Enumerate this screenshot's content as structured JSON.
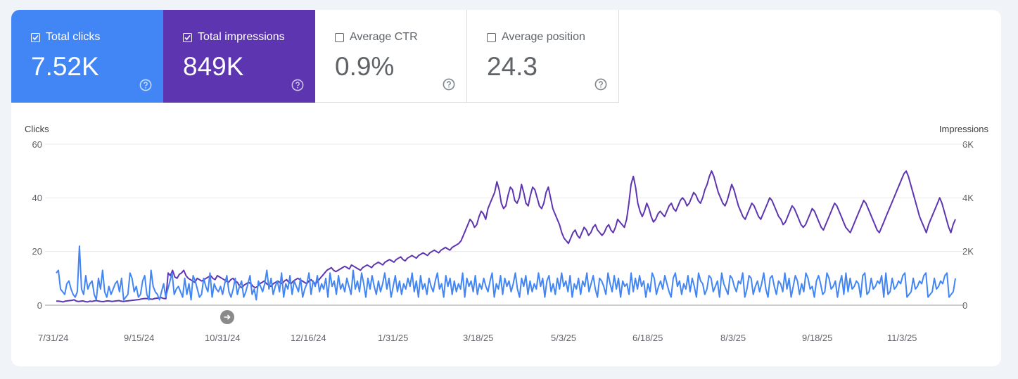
{
  "cards": [
    {
      "label": "Total clicks",
      "value": "7.52K",
      "checked": true,
      "color": "#4285f4"
    },
    {
      "label": "Total impressions",
      "value": "849K",
      "checked": true,
      "color": "#5e35b1"
    },
    {
      "label": "Average CTR",
      "value": "0.9%",
      "checked": false
    },
    {
      "label": "Average position",
      "value": "24.3",
      "checked": false
    }
  ],
  "icons": {
    "checkbox": "checkbox-icon",
    "help": "help-circle-icon",
    "navigate": "arrow-right-icon"
  },
  "chart_data": {
    "type": "line",
    "y_left_label": "Clicks",
    "y_right_label": "Impressions",
    "y_left_ticks": [
      "60",
      "40",
      "20",
      "0"
    ],
    "y_right_ticks": [
      "6K",
      "4K",
      "2K",
      "0"
    ],
    "ylim_left": [
      0,
      60
    ],
    "ylim_right": [
      0,
      6000
    ],
    "x_tick_labels": [
      "7/31/24",
      "9/15/24",
      "10/31/24",
      "12/16/24",
      "1/31/25",
      "3/18/25",
      "5/3/25",
      "6/18/25",
      "8/3/25",
      "9/18/25",
      "11/3/25"
    ],
    "grid": true,
    "series": [
      {
        "name": "Total clicks",
        "axis": "left",
        "color": "#4285f4",
        "values": [
          12,
          13,
          6,
          5,
          4,
          8,
          9,
          6,
          4,
          3,
          5,
          22,
          6,
          4,
          11,
          6,
          8,
          9,
          4,
          2,
          10,
          6,
          13,
          5,
          3,
          7,
          4,
          6,
          8,
          9,
          5,
          10,
          2,
          3,
          4,
          12,
          10,
          5,
          7,
          3,
          4,
          9,
          11,
          4,
          2,
          13,
          7,
          5,
          4,
          2,
          5,
          8,
          3,
          6,
          9,
          12,
          4,
          6,
          7,
          5,
          3,
          10,
          4,
          8,
          2,
          11,
          9,
          6,
          3,
          4,
          10,
          7,
          5,
          12,
          3,
          8,
          6,
          5,
          7,
          4,
          8,
          11,
          5,
          3,
          6,
          10,
          4,
          7,
          9,
          3,
          5,
          8,
          11,
          4,
          6,
          2,
          9,
          7,
          5,
          8,
          13,
          6,
          10,
          4,
          7,
          9,
          5,
          12,
          3,
          8,
          6,
          11,
          4,
          9,
          7,
          5,
          10,
          3,
          6,
          8,
          12,
          4,
          9,
          7,
          11,
          5,
          8,
          6,
          10,
          3,
          12,
          7,
          9,
          4,
          11,
          6,
          8,
          5,
          10,
          7,
          4,
          13,
          6,
          9,
          5,
          12,
          8,
          3,
          10,
          6,
          11,
          7,
          4,
          9,
          5,
          8,
          12,
          6,
          10,
          3,
          7,
          11,
          5,
          9,
          4,
          8,
          6,
          10,
          7,
          12,
          5,
          9,
          3,
          11,
          6,
          8,
          4,
          10,
          7,
          5,
          9,
          12,
          6,
          8,
          3,
          11,
          7,
          10,
          4,
          9,
          5,
          8,
          6,
          12,
          3,
          10,
          7,
          9,
          5,
          11,
          4,
          8,
          6,
          10,
          7,
          5,
          9,
          12,
          3,
          8,
          6,
          11,
          4,
          10,
          7,
          9,
          5,
          8,
          12,
          6,
          3,
          10,
          7,
          11,
          4,
          9,
          5,
          8,
          6,
          12,
          7,
          10,
          3,
          9,
          11,
          5,
          8,
          4,
          10,
          6,
          12,
          7,
          9,
          5,
          11,
          3,
          8,
          6,
          10,
          4,
          9,
          7,
          12,
          5,
          8,
          11,
          6,
          3,
          10,
          9,
          7,
          4,
          12,
          8,
          5,
          11,
          6,
          10,
          3,
          9,
          7,
          8,
          4,
          12,
          5,
          10,
          6,
          11,
          7,
          9,
          3,
          8,
          5,
          12,
          10,
          4,
          7,
          9,
          6,
          11,
          8,
          5,
          3,
          10,
          12,
          7,
          9,
          4,
          8,
          6,
          11,
          5,
          10,
          7,
          3,
          12,
          9,
          8,
          4,
          6,
          11,
          10,
          5,
          7,
          9,
          3,
          12,
          8,
          6,
          4,
          11,
          10,
          7,
          5,
          9,
          8,
          12,
          3,
          6,
          11,
          10,
          4,
          7,
          9,
          5,
          8,
          12,
          6,
          3,
          10,
          11,
          7,
          4,
          9,
          8,
          5,
          12,
          6,
          10,
          3,
          7,
          11,
          9,
          4,
          8,
          5,
          12,
          10,
          6,
          7,
          3,
          9,
          11,
          8,
          4,
          5,
          12,
          10,
          6,
          7,
          9,
          3,
          8,
          11,
          4,
          12,
          5,
          10,
          6,
          7,
          9,
          8,
          3,
          11,
          12,
          4,
          5,
          10,
          6,
          7,
          9,
          8,
          11,
          3,
          12,
          4,
          5,
          10,
          6,
          7,
          9,
          8,
          11,
          12,
          3,
          4,
          5,
          10,
          6,
          7,
          9,
          8,
          11,
          12,
          3,
          4,
          5,
          10,
          6,
          7,
          9,
          8,
          11,
          12,
          3,
          4,
          5,
          10
        ]
      },
      {
        "name": "Total impressions",
        "axis": "right",
        "color": "#5e35b1",
        "values": [
          150,
          150,
          140,
          120,
          150,
          160,
          170,
          180,
          200,
          150,
          140,
          150,
          160,
          130,
          120,
          150,
          140,
          160,
          170,
          150,
          140,
          130,
          150,
          160,
          150,
          140,
          150,
          160,
          170,
          150,
          140,
          150,
          160,
          170,
          180,
          190,
          200,
          210,
          230,
          240,
          250,
          240,
          230,
          220,
          250,
          260,
          270,
          280,
          250,
          240,
          1200,
          1100,
          1300,
          1050,
          1000,
          1150,
          1200,
          1300,
          1100,
          1000,
          950,
          900,
          850,
          1000,
          950,
          900,
          950,
          1000,
          1050,
          1100,
          1000,
          950,
          1100,
          1050,
          1000,
          950,
          900,
          850,
          950,
          1000,
          900,
          850,
          700,
          650,
          750,
          800,
          850,
          800,
          700,
          650,
          700,
          800,
          850,
          900,
          800,
          750,
          700,
          800,
          850,
          900,
          850,
          800,
          900,
          950,
          850,
          800,
          900,
          950,
          1000,
          950,
          900,
          850,
          800,
          900,
          950,
          850,
          800,
          900,
          1000,
          1100,
          1200,
          1300,
          1350,
          1400,
          1300,
          1250,
          1300,
          1350,
          1400,
          1450,
          1400,
          1350,
          1500,
          1450,
          1400,
          1350,
          1300,
          1400,
          1450,
          1500,
          1450,
          1400,
          1500,
          1550,
          1600,
          1550,
          1500,
          1600,
          1650,
          1700,
          1650,
          1600,
          1700,
          1750,
          1800,
          1700,
          1650,
          1750,
          1800,
          1850,
          1800,
          1750,
          1850,
          1900,
          1950,
          1900,
          1850,
          1950,
          2000,
          2050,
          2000,
          1950,
          2050,
          2100,
          2150,
          2100,
          2050,
          2150,
          2200,
          2250,
          2300,
          2400,
          2600,
          2800,
          3000,
          3200,
          3100,
          2900,
          3000,
          3300,
          3500,
          3400,
          3200,
          3600,
          3800,
          4000,
          4200,
          4600,
          4300,
          3800,
          3600,
          3700,
          4100,
          4400,
          4300,
          3900,
          3800,
          4000,
          4500,
          4200,
          3800,
          3700,
          4100,
          4400,
          4300,
          4000,
          3700,
          3600,
          3800,
          4200,
          4400,
          4000,
          3600,
          3400,
          3200,
          3000,
          2700,
          2500,
          2400,
          2300,
          2500,
          2700,
          2800,
          2600,
          2500,
          2700,
          2900,
          2800,
          2600,
          2700,
          2900,
          3000,
          2800,
          2700,
          2600,
          2700,
          2900,
          3000,
          2800,
          2700,
          2900,
          3200,
          3100,
          3000,
          2900,
          3200,
          3800,
          4500,
          4800,
          4400,
          3800,
          3500,
          3300,
          3500,
          3800,
          3600,
          3300,
          3100,
          3200,
          3400,
          3500,
          3400,
          3300,
          3500,
          3700,
          3800,
          3600,
          3500,
          3700,
          3900,
          4000,
          3900,
          3700,
          3800,
          4000,
          4200,
          4100,
          3900,
          3800,
          4000,
          4300,
          4500,
          4800,
          5000,
          4800,
          4500,
          4200,
          4000,
          3800,
          3700,
          3900,
          4200,
          4500,
          4300,
          4000,
          3700,
          3500,
          3300,
          3200,
          3400,
          3600,
          3800,
          3700,
          3500,
          3300,
          3200,
          3400,
          3600,
          3800,
          4000,
          3900,
          3700,
          3500,
          3300,
          3200,
          3000,
          3100,
          3300,
          3500,
          3700,
          3600,
          3400,
          3200,
          3000,
          2900,
          3000,
          3200,
          3400,
          3600,
          3500,
          3300,
          3100,
          2900,
          2800,
          3000,
          3200,
          3400,
          3600,
          3800,
          3700,
          3500,
          3300,
          3100,
          2900,
          2800,
          2700,
          2900,
          3100,
          3300,
          3500,
          3700,
          3900,
          3800,
          3600,
          3400,
          3200,
          3000,
          2800,
          2700,
          2900,
          3100,
          3300,
          3500,
          3700,
          3900,
          4100,
          4300,
          4500,
          4700,
          4900,
          5000,
          4800,
          4500,
          4200,
          3900,
          3600,
          3300,
          3100,
          2900,
          2700,
          3000,
          3200,
          3400,
          3600,
          3800,
          4000,
          3800,
          3500,
          3200,
          2900,
          2700,
          3000,
          3200
        ]
      }
    ]
  }
}
